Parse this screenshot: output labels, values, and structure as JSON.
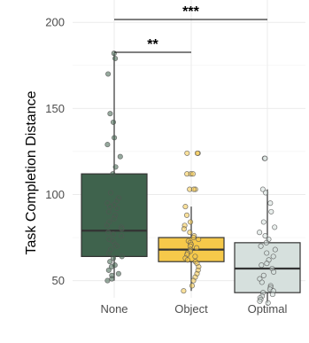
{
  "chart_data": {
    "type": "box",
    "ylabel": "Task Completion Distance",
    "xlabel": "",
    "ylim": [
      40,
      213
    ],
    "y_ticks": [
      50,
      100,
      150,
      200
    ],
    "grid": true,
    "categories": [
      "None",
      "Object",
      "Optimal"
    ],
    "boxes": [
      {
        "name": "None",
        "color": "#3f634d",
        "whisker_low": 50,
        "q1": 64,
        "median": 79,
        "q3": 112,
        "whisker_high": 182,
        "points": [
          182,
          179,
          170,
          147,
          142,
          133,
          129,
          122,
          116,
          112,
          101,
          98,
          96,
          95,
          94,
          93,
          92,
          90,
          88,
          86,
          84,
          82,
          81,
          80,
          78,
          77,
          76,
          74,
          73,
          71,
          70,
          68,
          66,
          64,
          63,
          61,
          59,
          58,
          56,
          54,
          53,
          51,
          50
        ]
      },
      {
        "name": "Object",
        "color": "#f6c94a",
        "whisker_low": 44,
        "q1": 61,
        "median": 68,
        "q3": 75,
        "whisker_high": 93,
        "points": [
          124,
          124,
          124,
          112,
          112,
          112,
          103,
          103,
          103,
          93,
          88,
          84,
          82,
          80,
          78,
          76,
          75,
          74,
          73,
          72,
          71,
          70,
          69,
          68,
          67,
          66,
          65,
          64,
          63,
          62,
          61,
          60,
          58,
          56,
          54,
          52,
          50,
          47,
          44
        ]
      },
      {
        "name": "Optimal",
        "color": "#d6e0dd",
        "whisker_low": 37,
        "q1": 43,
        "median": 57,
        "q3": 72,
        "whisker_high": 103,
        "points": [
          121,
          121,
          103,
          101,
          95,
          90,
          84,
          81,
          78,
          76,
          74,
          72,
          70,
          68,
          66,
          64,
          62,
          60,
          59,
          57,
          55,
          53,
          51,
          49,
          47,
          46,
          45,
          44,
          43,
          42,
          41,
          40,
          39,
          38,
          37
        ]
      }
    ],
    "significance": [
      {
        "from": "None",
        "to": "Object",
        "label": "**"
      },
      {
        "from": "None",
        "to": "Optimal",
        "label": "***"
      }
    ]
  }
}
